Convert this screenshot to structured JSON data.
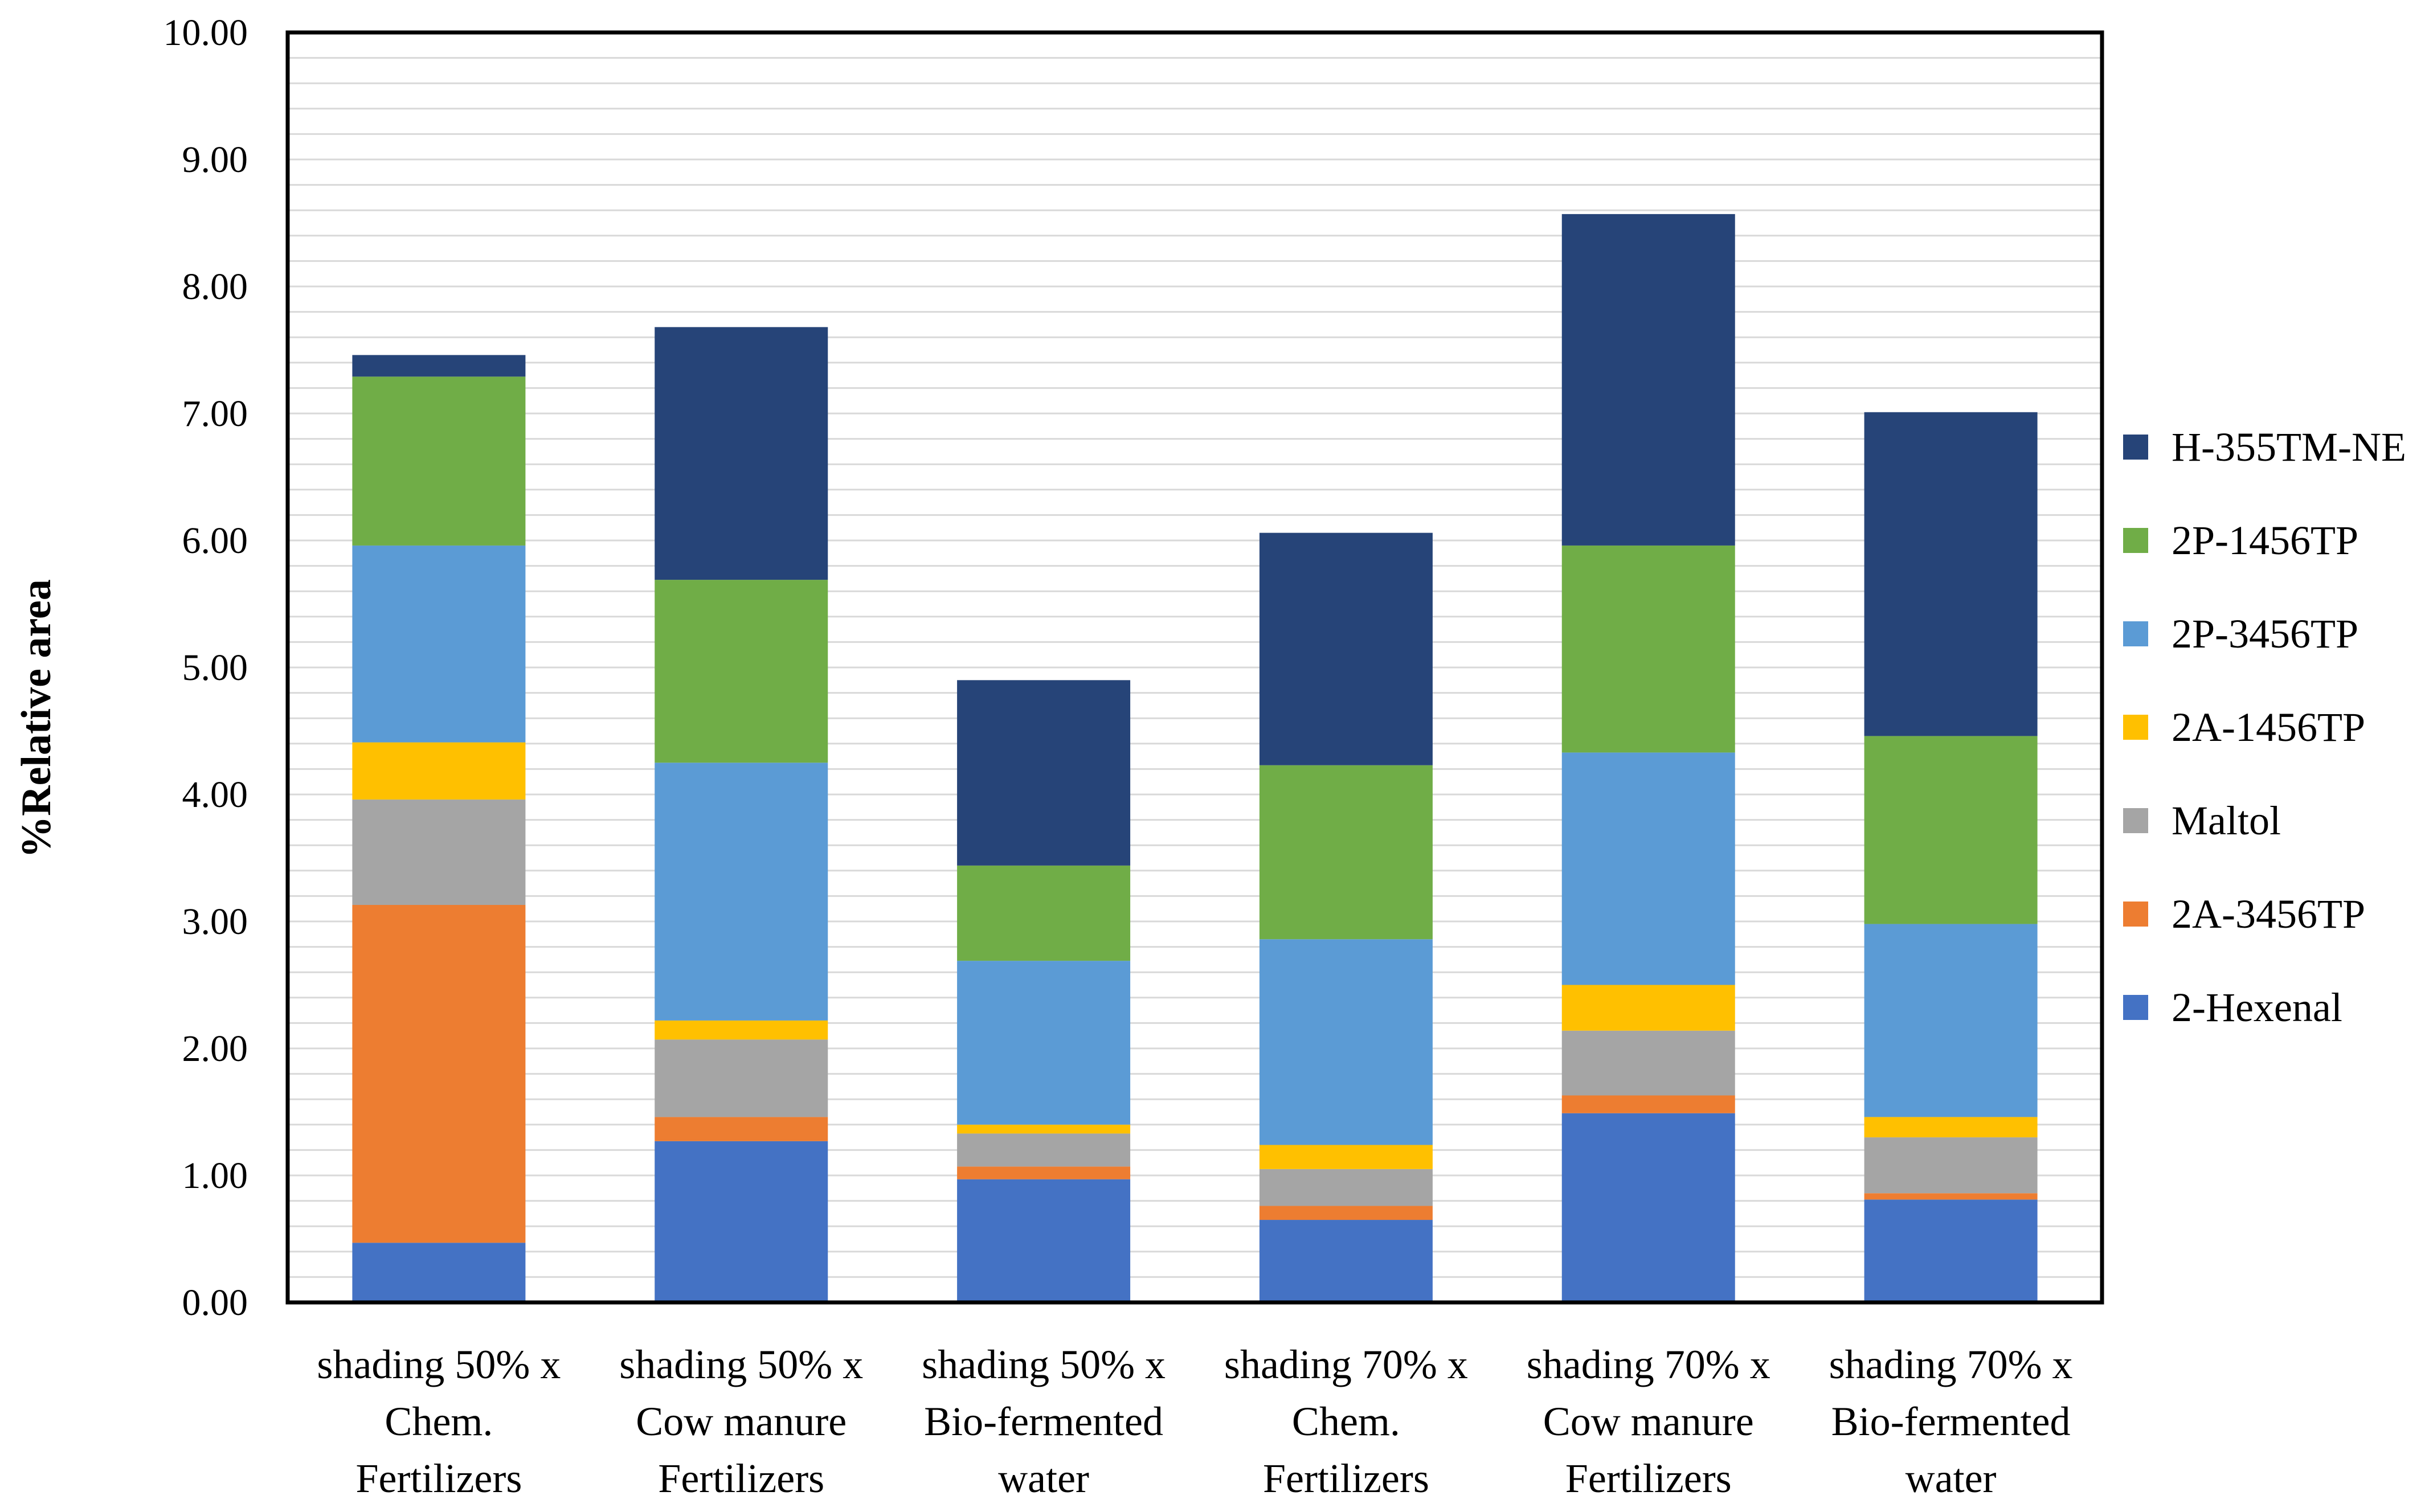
{
  "chart_data": {
    "type": "bar",
    "stacked": true,
    "title": "",
    "xlabel": "",
    "ylabel": "%Relative area",
    "ylim": [
      0,
      10
    ],
    "yticks": [
      "0.00",
      "1.00",
      "2.00",
      "3.00",
      "4.00",
      "5.00",
      "6.00",
      "7.00",
      "8.00",
      "9.00",
      "10.00"
    ],
    "grid": true,
    "legend_position": "right",
    "categories": [
      [
        "shading 50% x",
        "Chem.",
        "Fertilizers"
      ],
      [
        "shading 50% x",
        "Cow manure",
        "Fertilizers"
      ],
      [
        "shading 50% x",
        "Bio-fermented",
        "water"
      ],
      [
        "shading 70% x",
        "Chem.",
        "Fertilizers"
      ],
      [
        "shading 70% x",
        "Cow manure",
        "Fertilizers"
      ],
      [
        "shading 70% x",
        "Bio-fermented",
        "water"
      ]
    ],
    "series": [
      {
        "name": "2-Hexenal",
        "color": "#4472C4",
        "values": [
          0.47,
          1.27,
          0.97,
          0.65,
          1.49,
          0.81
        ]
      },
      {
        "name": "2A-3456TP",
        "color": "#ED7D31",
        "values": [
          2.66,
          0.19,
          0.1,
          0.11,
          0.14,
          0.05
        ]
      },
      {
        "name": "Maltol",
        "color": "#A5A5A5",
        "values": [
          0.83,
          0.61,
          0.26,
          0.29,
          0.51,
          0.44
        ]
      },
      {
        "name": "2A-1456TP",
        "color": "#FFC000",
        "values": [
          0.45,
          0.15,
          0.07,
          0.19,
          0.36,
          0.16
        ]
      },
      {
        "name": "2P-3456TP",
        "color": "#5B9BD5",
        "values": [
          1.55,
          2.03,
          1.29,
          1.62,
          1.83,
          1.52
        ]
      },
      {
        "name": "2P-1456TP",
        "color": "#70AD47",
        "values": [
          1.33,
          1.44,
          0.75,
          1.37,
          1.63,
          1.48
        ]
      },
      {
        "name": "H-355TM-NE",
        "color": "#264478",
        "values": [
          0.17,
          1.99,
          1.46,
          1.83,
          2.61,
          2.55
        ]
      }
    ]
  }
}
